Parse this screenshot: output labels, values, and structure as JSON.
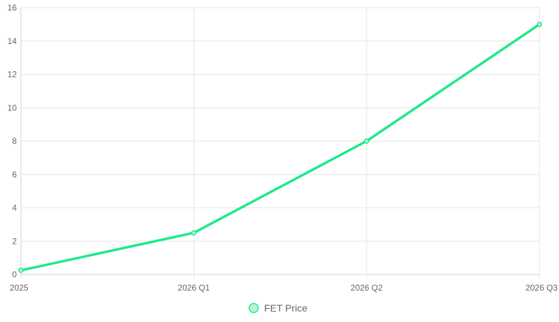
{
  "chart_data": {
    "type": "line",
    "categories": [
      "2025",
      "2026 Q1",
      "2026 Q2",
      "2026 Q3"
    ],
    "series": [
      {
        "name": "FET Price",
        "values": [
          0.25,
          2.5,
          8,
          15
        ],
        "color": "#1de98b"
      }
    ],
    "ylim": [
      0,
      16
    ],
    "yticks": [
      "0",
      "2",
      "4",
      "6",
      "8",
      "10",
      "12",
      "14",
      "16"
    ],
    "grid": true,
    "legend_position": "bottom"
  }
}
